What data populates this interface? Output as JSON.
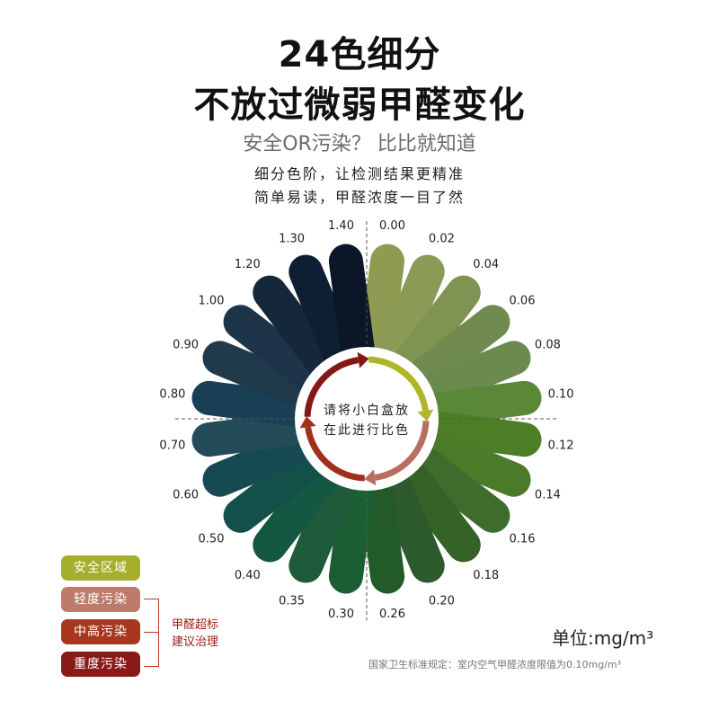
{
  "title_line1": "24色细分",
  "title_line2": "不放过微弱甲醛变化",
  "subtitle": "安全OR污染？ 比比就知道",
  "desc_line1": "细分色阶，让检测结果更精准",
  "desc_line2": "简单易读，甲醛浓度一目了然",
  "center_text_line1": "请将小白盒放",
  "center_text_line2": "在此进行比色",
  "scale": [
    {
      "value": "0.00",
      "color": "#8f9b52"
    },
    {
      "value": "0.02",
      "color": "#8a9b55"
    },
    {
      "value": "0.04",
      "color": "#7f9352"
    },
    {
      "value": "0.06",
      "color": "#718a4f"
    },
    {
      "value": "0.08",
      "color": "#6a8a50"
    },
    {
      "value": "0.10",
      "color": "#5a8838"
    },
    {
      "value": "0.12",
      "color": "#4c7e25"
    },
    {
      "value": "0.14",
      "color": "#4b7a28"
    },
    {
      "value": "0.16",
      "color": "#3e6c2c"
    },
    {
      "value": "0.18",
      "color": "#346227"
    },
    {
      "value": "0.20",
      "color": "#2d5a2c"
    },
    {
      "value": "0.26",
      "color": "#225a2a"
    },
    {
      "value": "0.30",
      "color": "#1c5e34"
    },
    {
      "value": "0.35",
      "color": "#1f5a3a"
    },
    {
      "value": "0.40",
      "color": "#145844"
    },
    {
      "value": "0.50",
      "color": "#14504a"
    },
    {
      "value": "0.60",
      "color": "#164a52"
    },
    {
      "value": "0.70",
      "color": "#234c58"
    },
    {
      "value": "0.80",
      "color": "#1a4055"
    },
    {
      "value": "0.90",
      "color": "#203a4c"
    },
    {
      "value": "1.00",
      "color": "#1e3448"
    },
    {
      "value": "1.20",
      "color": "#15283a"
    },
    {
      "value": "1.30",
      "color": "#0f1f33"
    },
    {
      "value": "1.40",
      "color": "#0b1628"
    }
  ],
  "ring_colors": {
    "safe": "#b0b526",
    "light": "#b96f5f",
    "medium": "#a0301c",
    "heavy": "#821917"
  },
  "legend": [
    {
      "label": "安全区域",
      "color": "#a6af2b"
    },
    {
      "label": "轻度污染",
      "color": "#bd7b6b"
    },
    {
      "label": "中高污染",
      "color": "#a7381f"
    },
    {
      "label": "重度污染",
      "color": "#8a1a18"
    }
  ],
  "note_line1": "甲醛超标",
  "note_line2": "建议治理",
  "unit": "单位:mg/m³",
  "footnote": "国家卫生标准规定：室内空气甲醛浓度限值为0.10mg/m³"
}
